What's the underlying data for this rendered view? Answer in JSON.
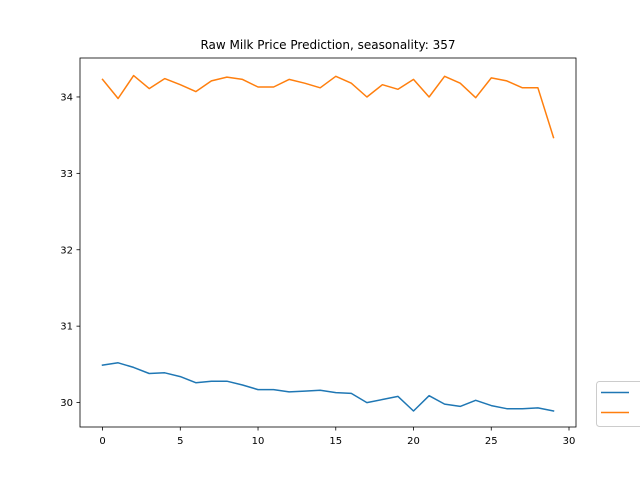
{
  "chart_data": {
    "type": "line",
    "title": "Raw Milk Price Prediction, seasonality: 357",
    "xlabel": "",
    "ylabel": "",
    "xlim": [
      -1.45,
      30.45
    ],
    "ylim": [
      29.68,
      34.51
    ],
    "x_ticks": [
      0,
      5,
      10,
      15,
      20,
      25,
      30
    ],
    "y_ticks": [
      30,
      31,
      32,
      33,
      34
    ],
    "grid": false,
    "legend_position": "bottom-right outside",
    "x": [
      0,
      1,
      2,
      3,
      4,
      5,
      6,
      7,
      8,
      9,
      10,
      11,
      12,
      13,
      14,
      15,
      16,
      17,
      18,
      19,
      20,
      21,
      22,
      23,
      24,
      25,
      26,
      27,
      28,
      29
    ],
    "series": [
      {
        "color": "#1f77b4",
        "values": [
          30.49,
          30.52,
          30.46,
          30.38,
          30.39,
          30.34,
          30.26,
          30.28,
          30.28,
          30.23,
          30.17,
          30.17,
          30.14,
          30.15,
          30.16,
          30.13,
          30.12,
          30.0,
          30.04,
          30.08,
          29.89,
          30.09,
          29.98,
          29.95,
          30.03,
          29.96,
          29.92,
          29.92,
          29.93,
          29.89
        ]
      },
      {
        "color": "#ff7f0e",
        "values": [
          34.23,
          33.98,
          34.28,
          34.11,
          34.24,
          34.16,
          34.07,
          34.21,
          34.26,
          34.23,
          34.13,
          34.13,
          34.23,
          34.18,
          34.12,
          34.27,
          34.18,
          34.0,
          34.16,
          34.1,
          34.23,
          34.0,
          34.27,
          34.18,
          33.99,
          34.25,
          34.21,
          34.12,
          34.12,
          33.47
        ]
      }
    ]
  }
}
